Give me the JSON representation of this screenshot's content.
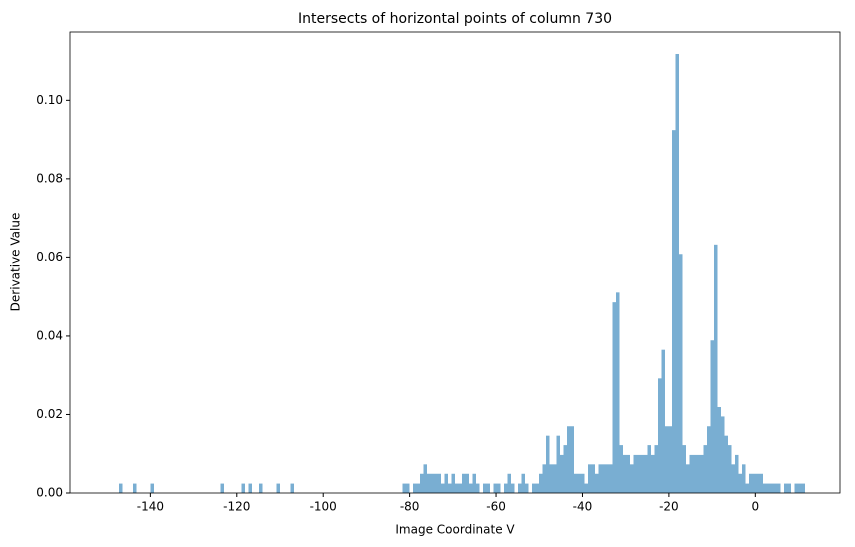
{
  "chart_data": {
    "type": "histogram",
    "title": "Intersects of horizontal points of column 730",
    "x_label": "Image Coordinate V",
    "y_label": "Derivative Value",
    "color": "#79aed2",
    "bins": [
      -150.5,
      -149.69,
      -148.88,
      -148.07,
      -147.26,
      -146.45,
      -145.64,
      -144.83,
      -144.02,
      -143.21,
      -142.4,
      -141.59,
      -140.78,
      -139.97,
      -139.16,
      -138.35,
      -137.54,
      -136.73,
      -135.92,
      -135.11,
      -134.3,
      -133.49,
      -132.68,
      -131.87,
      -131.06,
      -130.25,
      -129.44,
      -128.63,
      -127.82,
      -127.01,
      -126.2,
      -125.39,
      -124.58,
      -123.77,
      -122.96,
      -122.15,
      -121.34,
      -120.53,
      -119.72,
      -118.91,
      -118.1,
      -117.29,
      -116.48,
      -115.67,
      -114.86,
      -114.05,
      -113.24,
      -112.43,
      -111.62,
      -110.81,
      -110,
      -109.19,
      -108.38,
      -107.57,
      -106.76,
      -105.95,
      -105.14,
      -104.33,
      -103.52,
      -102.71,
      -101.9,
      -101.09,
      -100.28,
      -99.47,
      -98.66,
      -97.85,
      -97.04,
      -96.23,
      -95.42,
      -94.61,
      -93.8,
      -92.99,
      -92.18,
      -91.37,
      -90.56,
      -89.75,
      -88.94,
      -88.13,
      -87.32,
      -86.51,
      -85.7,
      -84.89,
      -84.08,
      -83.27,
      -82.46,
      -81.65,
      -80.84,
      -80.03,
      -79.22,
      -78.41,
      -77.6,
      -76.79,
      -75.98,
      -75.17,
      -74.36,
      -73.55,
      -72.74,
      -71.93,
      -71.12,
      -70.31,
      -69.5,
      -68.69,
      -67.88,
      -67.07,
      -66.26,
      -65.45,
      -64.64,
      -63.83,
      -63.02,
      -62.21,
      -61.4,
      -60.59,
      -59.78,
      -58.97,
      -58.16,
      -57.35,
      -56.54,
      -55.73,
      -54.92,
      -54.11,
      -53.3,
      -52.49,
      -51.68,
      -50.87,
      -50.06,
      -49.25,
      -48.44,
      -47.63,
      -46.82,
      -46.01,
      -45.2,
      -44.39,
      -43.58,
      -42.77,
      -41.96,
      -41.15,
      -40.34,
      -39.53,
      -38.72,
      -37.91,
      -37.1,
      -36.29,
      -35.48,
      -34.67,
      -33.86,
      -33.05,
      -32.24,
      -31.43,
      -30.62,
      -29.81,
      -29,
      -28.19,
      -27.38,
      -26.57,
      -25.76,
      -24.95,
      -24.14,
      -23.33,
      -22.52,
      -21.71,
      -20.9,
      -20.09,
      -19.28,
      -18.47,
      -17.66,
      -16.85,
      -16.04,
      -15.23,
      -14.42,
      -13.61,
      -12.8,
      -11.99,
      -11.18,
      -10.37,
      -9.56,
      -8.75,
      -7.94,
      -7.13,
      -6.32,
      -5.51,
      -4.7,
      -3.89,
      -3.08,
      -2.27,
      -1.46,
      -0.65,
      0.16,
      0.97,
      1.78,
      2.59,
      3.4,
      4.21,
      5.02,
      5.83,
      6.64,
      7.45,
      8.26,
      9.07,
      9.88,
      10.69,
      11.5
    ],
    "values": [
      0,
      0,
      0,
      0,
      0.0024,
      0,
      0,
      0,
      0.0024,
      0,
      0,
      0,
      0,
      0.0024,
      0,
      0,
      0,
      0,
      0,
      0,
      0,
      0,
      0,
      0,
      0,
      0,
      0,
      0,
      0,
      0,
      0,
      0,
      0,
      0.0024,
      0,
      0,
      0,
      0,
      0,
      0.0024,
      0,
      0.0024,
      0,
      0,
      0.0024,
      0,
      0,
      0,
      0,
      0.0024,
      0,
      0,
      0,
      0.0024,
      0,
      0,
      0,
      0,
      0,
      0,
      0,
      0,
      0,
      0,
      0,
      0,
      0,
      0,
      0,
      0,
      0,
      0,
      0,
      0,
      0,
      0,
      0,
      0,
      0,
      0,
      0,
      0,
      0,
      0,
      0,
      0.0024,
      0.0024,
      0,
      0.0024,
      0.0024,
      0.0049,
      0.0073,
      0.0049,
      0.0049,
      0.0049,
      0.0049,
      0.0024,
      0.0049,
      0.0024,
      0.0049,
      0.0024,
      0.0024,
      0.0049,
      0.0049,
      0.0024,
      0.0049,
      0.0024,
      0,
      0.0024,
      0.0024,
      0,
      0.0024,
      0.0024,
      0,
      0.0024,
      0.0049,
      0.0024,
      0,
      0.0024,
      0.0049,
      0.0024,
      0,
      0.0024,
      0.0024,
      0.0049,
      0.0073,
      0.0146,
      0.0073,
      0.0073,
      0.0146,
      0.0097,
      0.0122,
      0.017,
      0.017,
      0.0049,
      0.0049,
      0.0049,
      0.0024,
      0.0073,
      0.0073,
      0.0049,
      0.0073,
      0.0073,
      0.0073,
      0.0073,
      0.0486,
      0.0511,
      0.0122,
      0.0097,
      0.0097,
      0.0073,
      0.0097,
      0.0097,
      0.0097,
      0.0097,
      0.0122,
      0.0097,
      0.0122,
      0.0292,
      0.0365,
      0.017,
      0.017,
      0.0924,
      0.1118,
      0.0608,
      0.0122,
      0.0073,
      0.0097,
      0.0097,
      0.0097,
      0.0097,
      0.0122,
      0.017,
      0.0389,
      0.0632,
      0.0219,
      0.0195,
      0.0146,
      0.0122,
      0.0073,
      0.0097,
      0.0049,
      0.0073,
      0.0024,
      0.0049,
      0.0049,
      0.0049,
      0.0049,
      0.0024,
      0.0024,
      0.0024,
      0.0024,
      0.0024,
      0,
      0.0024,
      0.0024,
      0,
      0.0024,
      0.0024,
      0.0024
    ],
    "xlim": [
      -158.6,
      19.6
    ],
    "xticks": [
      -140,
      -120,
      -100,
      -80,
      -60,
      -40,
      -20,
      0
    ],
    "ylim": [
      0,
      0.1174
    ],
    "yticks": [
      {
        "value": 0,
        "label": "0.00"
      },
      {
        "value": 0.02,
        "label": "0.02"
      },
      {
        "value": 0.04,
        "label": "0.04"
      },
      {
        "value": 0.06,
        "label": "0.06"
      },
      {
        "value": 0.08,
        "label": "0.08"
      },
      {
        "value": 0.1,
        "label": "0.10"
      }
    ]
  }
}
